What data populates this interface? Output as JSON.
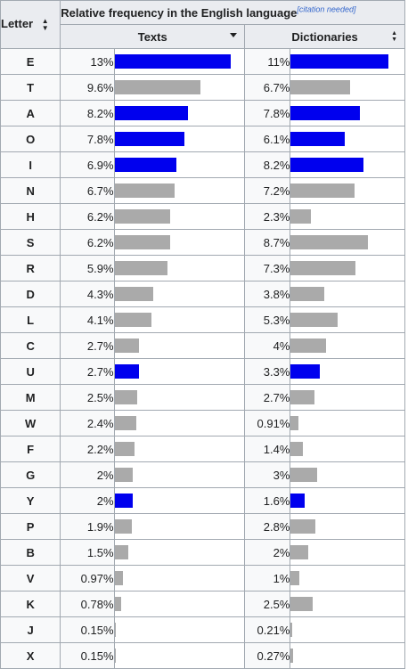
{
  "header": {
    "letter_label": "Letter",
    "group_label": "Relative frequency in the English language",
    "citation": "[citation needed]",
    "texts_label": "Texts",
    "dictionaries_label": "Dictionaries"
  },
  "colors": {
    "vowel": "#0000ee",
    "consonant": "#aaaaaa"
  },
  "scale_max": 13,
  "rows": [
    {
      "letter": "E",
      "texts": "13%",
      "texts_value": 13,
      "dict": "11%",
      "dict_value": 11,
      "vowel": true
    },
    {
      "letter": "T",
      "texts": "9.6%",
      "texts_value": 9.6,
      "dict": "6.7%",
      "dict_value": 6.7,
      "vowel": false
    },
    {
      "letter": "A",
      "texts": "8.2%",
      "texts_value": 8.2,
      "dict": "7.8%",
      "dict_value": 7.8,
      "vowel": true
    },
    {
      "letter": "O",
      "texts": "7.8%",
      "texts_value": 7.8,
      "dict": "6.1%",
      "dict_value": 6.1,
      "vowel": true
    },
    {
      "letter": "I",
      "texts": "6.9%",
      "texts_value": 6.9,
      "dict": "8.2%",
      "dict_value": 8.2,
      "vowel": true
    },
    {
      "letter": "N",
      "texts": "6.7%",
      "texts_value": 6.7,
      "dict": "7.2%",
      "dict_value": 7.2,
      "vowel": false
    },
    {
      "letter": "H",
      "texts": "6.2%",
      "texts_value": 6.2,
      "dict": "2.3%",
      "dict_value": 2.3,
      "vowel": false
    },
    {
      "letter": "S",
      "texts": "6.2%",
      "texts_value": 6.2,
      "dict": "8.7%",
      "dict_value": 8.7,
      "vowel": false
    },
    {
      "letter": "R",
      "texts": "5.9%",
      "texts_value": 5.9,
      "dict": "7.3%",
      "dict_value": 7.3,
      "vowel": false
    },
    {
      "letter": "D",
      "texts": "4.3%",
      "texts_value": 4.3,
      "dict": "3.8%",
      "dict_value": 3.8,
      "vowel": false
    },
    {
      "letter": "L",
      "texts": "4.1%",
      "texts_value": 4.1,
      "dict": "5.3%",
      "dict_value": 5.3,
      "vowel": false
    },
    {
      "letter": "C",
      "texts": "2.7%",
      "texts_value": 2.7,
      "dict": "4%",
      "dict_value": 4,
      "vowel": false
    },
    {
      "letter": "U",
      "texts": "2.7%",
      "texts_value": 2.7,
      "dict": "3.3%",
      "dict_value": 3.3,
      "vowel": true
    },
    {
      "letter": "M",
      "texts": "2.5%",
      "texts_value": 2.5,
      "dict": "2.7%",
      "dict_value": 2.7,
      "vowel": false
    },
    {
      "letter": "W",
      "texts": "2.4%",
      "texts_value": 2.4,
      "dict": "0.91%",
      "dict_value": 0.91,
      "vowel": false
    },
    {
      "letter": "F",
      "texts": "2.2%",
      "texts_value": 2.2,
      "dict": "1.4%",
      "dict_value": 1.4,
      "vowel": false
    },
    {
      "letter": "G",
      "texts": "2%",
      "texts_value": 2,
      "dict": "3%",
      "dict_value": 3,
      "vowel": false
    },
    {
      "letter": "Y",
      "texts": "2%",
      "texts_value": 2,
      "dict": "1.6%",
      "dict_value": 1.6,
      "vowel": true
    },
    {
      "letter": "P",
      "texts": "1.9%",
      "texts_value": 1.9,
      "dict": "2.8%",
      "dict_value": 2.8,
      "vowel": false
    },
    {
      "letter": "B",
      "texts": "1.5%",
      "texts_value": 1.5,
      "dict": "2%",
      "dict_value": 2,
      "vowel": false
    },
    {
      "letter": "V",
      "texts": "0.97%",
      "texts_value": 0.97,
      "dict": "1%",
      "dict_value": 1,
      "vowel": false
    },
    {
      "letter": "K",
      "texts": "0.78%",
      "texts_value": 0.78,
      "dict": "2.5%",
      "dict_value": 2.5,
      "vowel": false
    },
    {
      "letter": "J",
      "texts": "0.15%",
      "texts_value": 0.15,
      "dict": "0.21%",
      "dict_value": 0.21,
      "vowel": false
    },
    {
      "letter": "X",
      "texts": "0.15%",
      "texts_value": 0.15,
      "dict": "0.27%",
      "dict_value": 0.27,
      "vowel": false
    }
  ]
}
